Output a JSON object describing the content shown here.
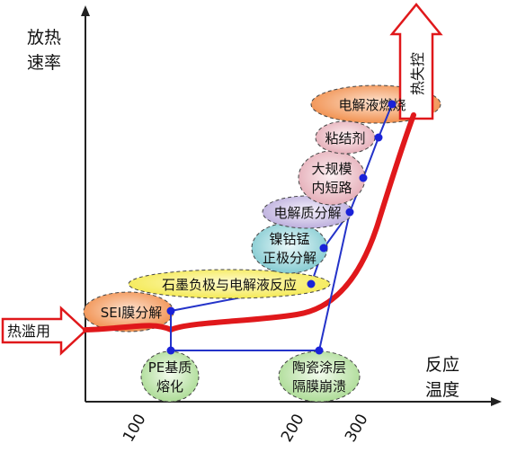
{
  "axes": {
    "y_label_line1": "放热",
    "y_label_line2": "速率",
    "x_label_line1": "反应",
    "x_label_line2": "温度",
    "x_ticks": [
      "100",
      "200",
      "300"
    ]
  },
  "arrows": {
    "thermal_abuse": "热滥用",
    "thermal_runaway": "热失控"
  },
  "stages": {
    "sei": "SEI膜分解",
    "graphite": "石墨负极与电解液反应",
    "ncm_line1": "镍钴锰",
    "ncm_line2": "正极分解",
    "electrolyte_decomp": "电解质分解",
    "short_line1": "大规模",
    "short_line2": "内短路",
    "binder": "粘结剂",
    "electrolyte_burn": "电解液燃烧",
    "pe_line1": "PE基质",
    "pe_line2": "熔化",
    "ceramic_line1": "陶瓷涂层",
    "ceramic_line2": "隔膜崩溃"
  },
  "colors": {
    "axis": "#222222",
    "curve": "#e0181b",
    "connector": "#2433c9",
    "node": "#1a22d8",
    "orange": "#f4a36b",
    "yellow": "#fbf48a",
    "teal": "#9fd8dc",
    "lavender": "#cdc3e6",
    "pink": "#eecbd1",
    "green": "#c9e8b8"
  }
}
